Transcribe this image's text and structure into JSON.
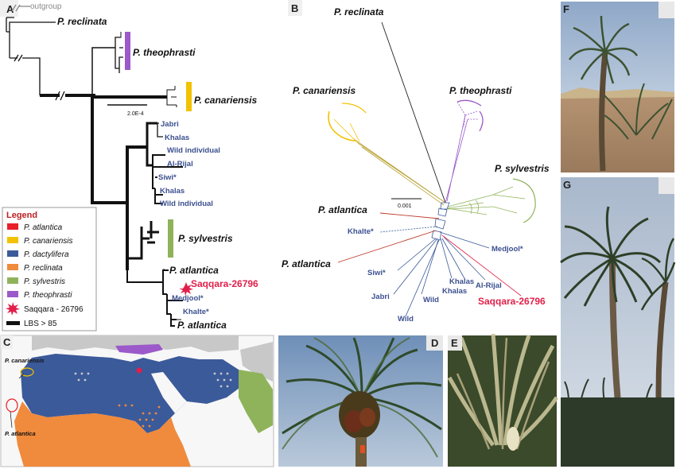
{
  "panels": {
    "A": "A",
    "B": "B",
    "C": "C",
    "D": "D",
    "E": "E",
    "F": "F",
    "G": "G"
  },
  "tree_a": {
    "outgroup": "outgroup",
    "reclinata": "P. reclinata",
    "theophrasti": "P. theophrasti",
    "canariensis": "P. canariensis",
    "scale": "2.0E-4",
    "jabri": "Jabri",
    "khalas1": "Khalas",
    "wild1": "Wild individual",
    "alrijal": "Al-Rijal",
    "siwi": "Siwi*",
    "khalas2": "Khalas",
    "wild2": "Wild individual",
    "sylvestris": "P. sylvestris",
    "atlantica1": "P. atlantica",
    "saqqara": "Saqqara-26796",
    "medjool": "Medjool*",
    "khalte": "Khalte*",
    "atlantica2": "P. atlantica"
  },
  "legend": {
    "title": "Legend",
    "items": [
      {
        "label": "P. atlantica",
        "color": "#e8202a"
      },
      {
        "label": "P. canariensis",
        "color": "#f2c200"
      },
      {
        "label": "P. dactylifera",
        "color": "#3b5a9a"
      },
      {
        "label": "P. reclinata",
        "color": "#f08a3c"
      },
      {
        "label": "P. sylvestris",
        "color": "#8fb35a"
      },
      {
        "label": "P. theophrasti",
        "color": "#9b59c9"
      }
    ],
    "saqqara": "Saqqara - 26796",
    "lbs": "LBS > 85"
  },
  "network_b": {
    "reclinata": "P. reclinata",
    "canariensis": "P. canariensis",
    "theophrasti": "P. theophrasti",
    "sylvestris": "P. sylvestris",
    "atlantica1": "P. atlantica",
    "atlantica2": "P. atlantica",
    "khalte": "Khalte*",
    "medjool": "Medjool*",
    "siwi": "Siwi*",
    "jabri": "Jabri",
    "wild1": "Wild",
    "wild2": "Wild",
    "khalas1": "Khalas",
    "khalas2": "Khalas",
    "alrijal": "Al-Rijal",
    "saqqara": "Saqqara-26796",
    "scale": "0.001"
  },
  "map_c": {
    "canariensis": "P. canariensis",
    "atlantica": "P. atlantica"
  },
  "colors": {
    "dactylifera": "#3b5a9a",
    "reclinata": "#f08a3c",
    "sylvestris": "#8fb35a",
    "theophrasti": "#9b59c9",
    "canariensis": "#f2c200",
    "atlantica": "#e8202a",
    "saqqara": "#e0204a"
  }
}
